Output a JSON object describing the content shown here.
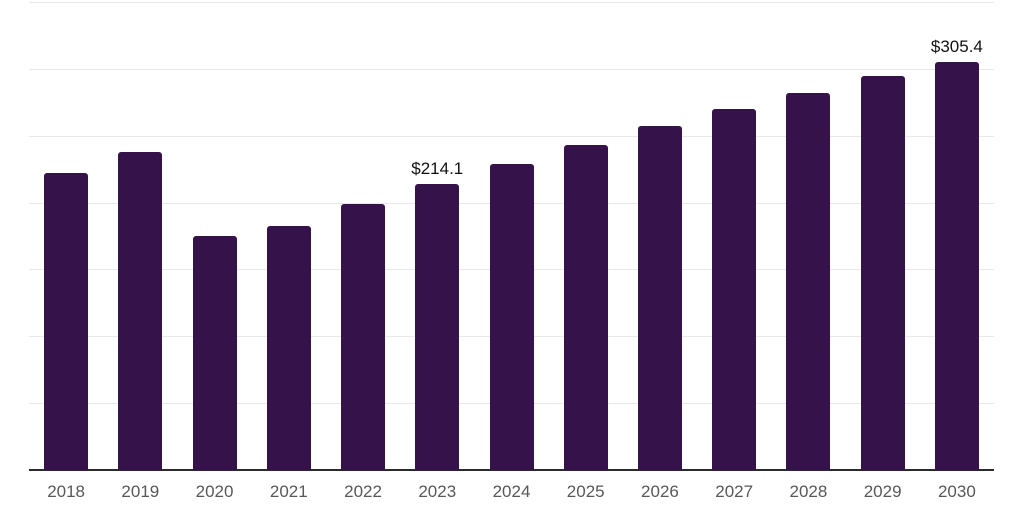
{
  "chart_data": {
    "type": "bar",
    "categories": [
      "2018",
      "2019",
      "2020",
      "2021",
      "2022",
      "2023",
      "2024",
      "2025",
      "2026",
      "2027",
      "2028",
      "2029",
      "2030"
    ],
    "values": [
      222.0,
      237.8,
      175.0,
      182.2,
      199.0,
      214.1,
      229.1,
      242.8,
      257.1,
      270.3,
      281.8,
      294.3,
      305.4
    ],
    "annotations": [
      {
        "index": 5,
        "text": "$214.1"
      },
      {
        "index": 12,
        "text": "$305.4"
      }
    ],
    "title": "",
    "xlabel": "",
    "ylabel": "",
    "ylim": [
      0,
      350
    ],
    "grid_step": 50,
    "grid_on": true,
    "legend_position": "none",
    "colors": {
      "bar": "#36124B",
      "gridline": "#E9E9E9",
      "axis_line": "#2B2B2B",
      "tick_label": "#58585A",
      "value_label": "#111111",
      "background": "#FFFFFF"
    }
  }
}
